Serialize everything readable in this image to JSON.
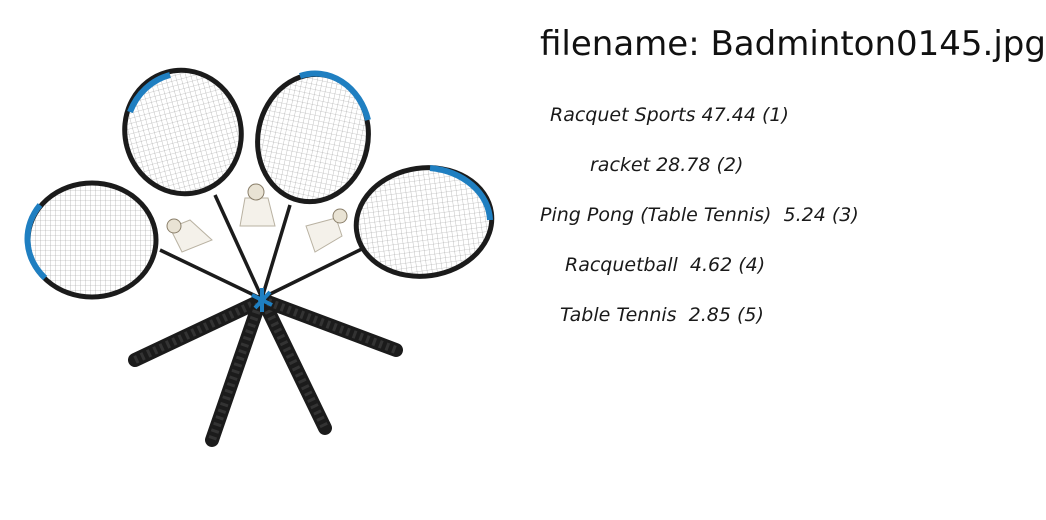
{
  "image": {
    "subject": "badminton-rackets-and-shuttlecocks",
    "racket_frame_color": "#1f7fc1",
    "racket_dark_color": "#1b1b1b"
  },
  "filename_text": "filename: Badminton0145.jpg",
  "predictions": [
    {
      "text": "Racquet Sports 47.44 (1)"
    },
    {
      "text": "racket 28.78 (2)"
    },
    {
      "text": "Ping Pong (Table Tennis)  5.24 (3)"
    },
    {
      "text": "Racquetball  4.62 (4)"
    },
    {
      "text": "Table Tennis  2.85 (5)"
    }
  ]
}
